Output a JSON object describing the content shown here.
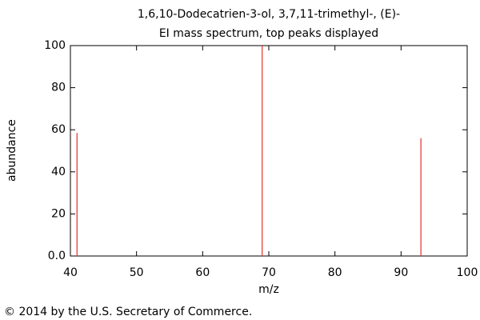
{
  "chart_data": {
    "type": "stem",
    "title": "1,6,10-Dodecatrien-3-ol, 3,7,11-trimethyl-, (E)-",
    "subtitle": "EI mass spectrum, top peaks displayed",
    "xlabel": "m/z",
    "ylabel": "abundance",
    "x": [
      41,
      69,
      93
    ],
    "values": [
      58.5,
      100,
      56
    ],
    "color": "#e03030",
    "xlim": [
      40,
      100
    ],
    "xticks": [
      40,
      50,
      60,
      70,
      80,
      90,
      100
    ],
    "ylim": [
      0,
      100
    ],
    "yticks": [
      {
        "value": 0,
        "label": "0.0"
      },
      20,
      40,
      60,
      80,
      100
    ],
    "grid": false
  },
  "footer": "© 2014 by the U.S. Secretary of Commerce."
}
